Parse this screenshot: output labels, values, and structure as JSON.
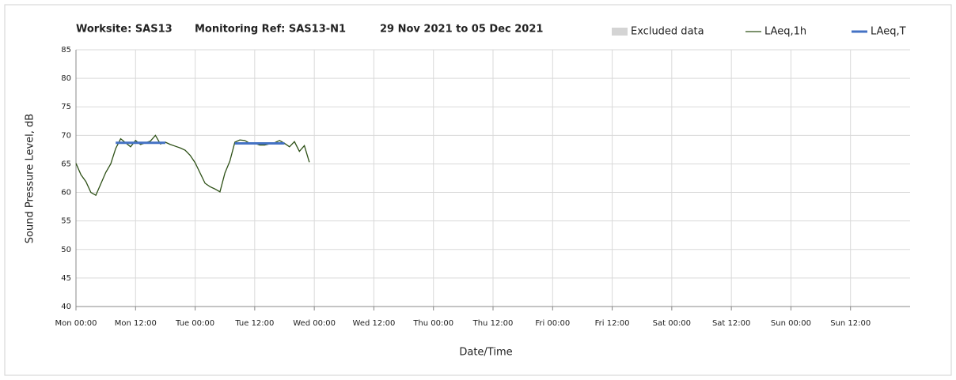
{
  "chart_data": {
    "type": "line",
    "title_parts": [
      "Worksite: SAS13",
      "Monitoring Ref: SAS13-N1",
      "29 Nov 2021 to 05 Dec 2021"
    ],
    "x_label": "Date/Time",
    "y_label": "Sound Pressure Level, dB",
    "xlim": [
      0,
      168
    ],
    "ylim": [
      40,
      85
    ],
    "xticks": [
      {
        "value": 0,
        "label": "Mon 00:00"
      },
      {
        "value": 12,
        "label": "Mon 12:00"
      },
      {
        "value": 24,
        "label": "Tue 00:00"
      },
      {
        "value": 36,
        "label": "Tue 12:00"
      },
      {
        "value": 48,
        "label": "Wed 00:00"
      },
      {
        "value": 60,
        "label": "Wed 12:00"
      },
      {
        "value": 72,
        "label": "Thu 00:00"
      },
      {
        "value": 84,
        "label": "Thu 12:00"
      },
      {
        "value": 96,
        "label": "Fri 00:00"
      },
      {
        "value": 108,
        "label": "Fri 12:00"
      },
      {
        "value": 120,
        "label": "Sat 00:00"
      },
      {
        "value": 132,
        "label": "Sat 12:00"
      },
      {
        "value": 144,
        "label": "Sun 00:00"
      },
      {
        "value": 156,
        "label": "Sun 12:00"
      }
    ],
    "yticks": [
      40,
      45,
      50,
      55,
      60,
      65,
      70,
      75,
      80,
      85
    ],
    "grid": true,
    "series": [
      {
        "name": "Excluded data",
        "color": "#d4d4d4",
        "x": [],
        "values": []
      },
      {
        "name": "LAeq,1h",
        "color": "#2d5016",
        "x": [
          0,
          1,
          2,
          3,
          4,
          5,
          6,
          7,
          8,
          9,
          10,
          11,
          12,
          13,
          14,
          15,
          16,
          17,
          18,
          19,
          20,
          21,
          22,
          23,
          24,
          25,
          26,
          27,
          28,
          29,
          30,
          31,
          32,
          33,
          34,
          35,
          36,
          37,
          38,
          39,
          40,
          41,
          42,
          43,
          44,
          45,
          46,
          47
        ],
        "values": [
          65.1,
          63.1,
          61.9,
          60.0,
          59.5,
          61.5,
          63.5,
          65.0,
          67.7,
          69.4,
          68.7,
          68.0,
          69.1,
          68.4,
          68.7,
          69.0,
          70.0,
          68.5,
          68.8,
          68.4,
          68.1,
          67.8,
          67.4,
          66.5,
          65.2,
          63.4,
          61.6,
          61.0,
          60.6,
          60.1,
          63.4,
          65.5,
          68.8,
          69.2,
          69.1,
          68.6,
          68.6,
          68.3,
          68.3,
          68.5,
          68.7,
          69.1,
          68.6,
          68.0,
          68.9,
          67.2,
          68.2,
          65.3
        ]
      },
      {
        "name": "LAeq,T",
        "color": "#4472c4",
        "x": [
          8,
          18,
          25,
          32,
          42
        ],
        "values": [
          68.7,
          68.7,
          null,
          68.6,
          68.6
        ]
      }
    ]
  }
}
